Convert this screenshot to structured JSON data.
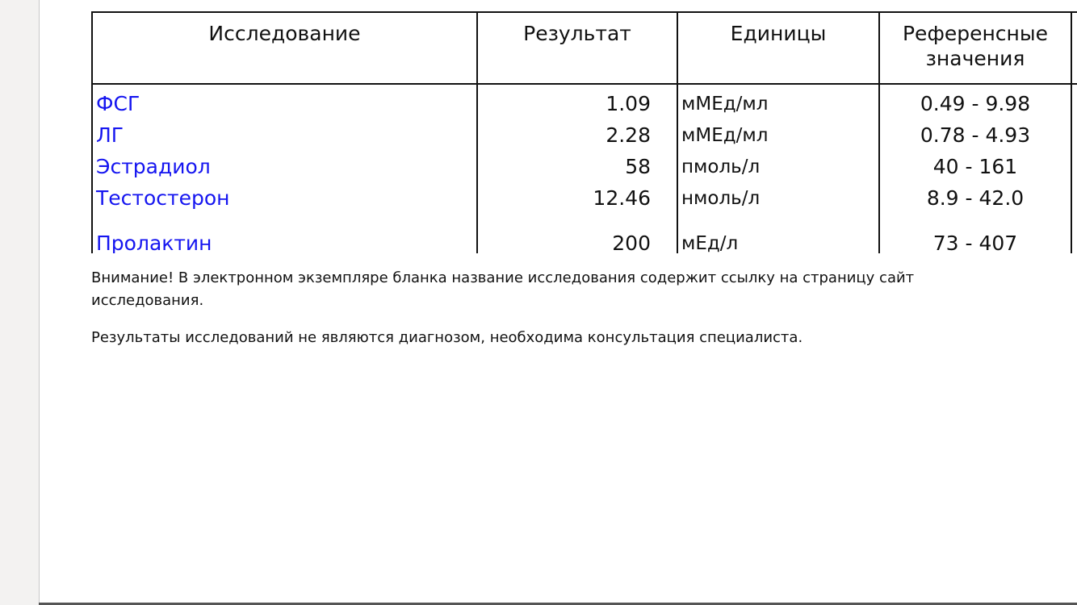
{
  "table": {
    "headers": [
      "Исследование",
      "Результат",
      "Единицы",
      "Референсные значения"
    ],
    "rows": [
      [
        "ФСГ",
        "1.09",
        "мМЕд/мл",
        "0.49 - 9.98"
      ],
      [
        "ЛГ",
        "2.28",
        "мМЕд/мл",
        "0.78 - 4.93"
      ],
      [
        "Эстрадиол",
        "58",
        "пмоль/л",
        "40 - 161"
      ],
      [
        "Тестостерон",
        "12.46",
        "нмоль/л",
        "8.9 - 42.0"
      ],
      [
        "Пролактин",
        "200",
        "мЕд/л",
        "73 - 407"
      ]
    ]
  },
  "notes": {
    "warning_line1": "Внимание! В электронном экземпляре бланка название исследования содержит ссылку на страницу сайт",
    "warning_line2": "исследования.",
    "disclaimer": "Результаты исследований не являются диагнозом, необходима консультация специалиста."
  }
}
